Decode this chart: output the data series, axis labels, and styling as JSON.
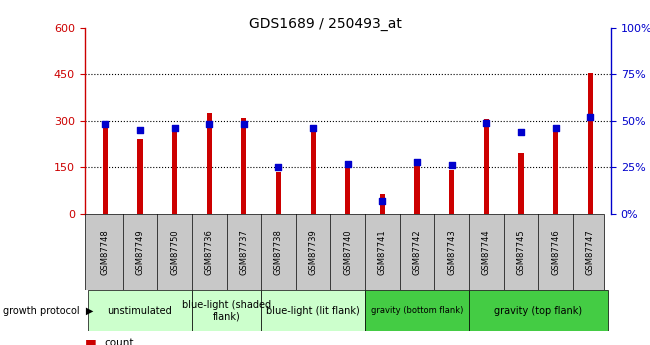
{
  "title": "GDS1689 / 250493_at",
  "samples": [
    "GSM87748",
    "GSM87749",
    "GSM87750",
    "GSM87736",
    "GSM87737",
    "GSM87738",
    "GSM87739",
    "GSM87740",
    "GSM87741",
    "GSM87742",
    "GSM87743",
    "GSM87744",
    "GSM87745",
    "GSM87746",
    "GSM87747"
  ],
  "counts": [
    300,
    240,
    275,
    325,
    310,
    135,
    270,
    155,
    65,
    165,
    140,
    305,
    195,
    265,
    455
  ],
  "percentiles": [
    48,
    45,
    46,
    48,
    48,
    25,
    46,
    27,
    7,
    28,
    26,
    49,
    44,
    46,
    52
  ],
  "groups": [
    {
      "label": "unstimulated",
      "start": 0,
      "end": 3,
      "color": "#ccffcc",
      "fontsize": 8
    },
    {
      "label": "blue-light (shaded\nflank)",
      "start": 3,
      "end": 5,
      "color": "#ccffcc",
      "fontsize": 8
    },
    {
      "label": "blue-light (lit flank)",
      "start": 5,
      "end": 8,
      "color": "#ccffcc",
      "fontsize": 8
    },
    {
      "label": "gravity (bottom flank)",
      "start": 8,
      "end": 11,
      "color": "#44cc44",
      "fontsize": 7
    },
    {
      "label": "gravity (top flank)",
      "start": 11,
      "end": 15,
      "color": "#44cc44",
      "fontsize": 8
    }
  ],
  "ylim_left": [
    0,
    600
  ],
  "ylim_right": [
    0,
    100
  ],
  "yticks_left": [
    0,
    150,
    300,
    450,
    600
  ],
  "yticks_right": [
    0,
    25,
    50,
    75,
    100
  ],
  "bar_color": "#cc0000",
  "dot_color": "#0000cc",
  "plot_bg": "#e8e8e8",
  "label_bg": "#c8c8c8",
  "dot_size": 18,
  "bar_width": 0.15
}
